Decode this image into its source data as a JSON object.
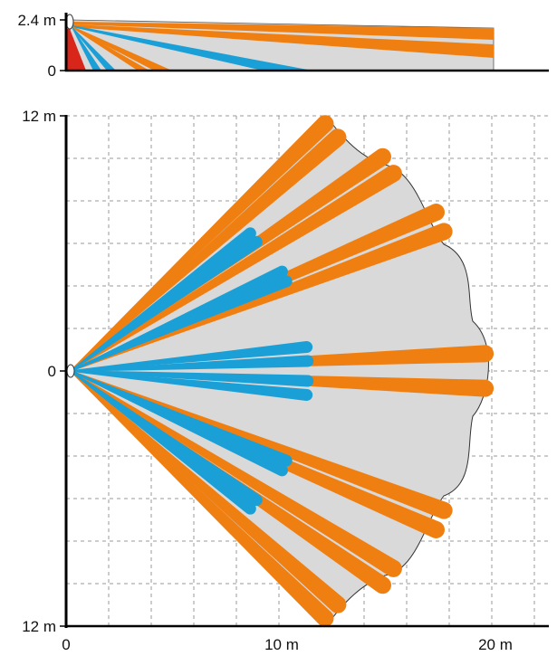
{
  "side_view": {
    "y_tick_top": "2.4 m",
    "y_tick_bottom": "0"
  },
  "top_view": {
    "y_tick_top": "12 m",
    "y_tick_mid": "0",
    "y_tick_bottom": "12 m",
    "x_tick_0": "0",
    "x_tick_10": "10 m",
    "x_tick_20": "20 m"
  },
  "colors": {
    "long_beam": "#f07f12",
    "short_beam": "#1aa0d6",
    "coverage_area": "#d9d9d9",
    "creep_zone": "#d8261b",
    "grid": "#9a9a9a",
    "axis": "#000000"
  }
}
